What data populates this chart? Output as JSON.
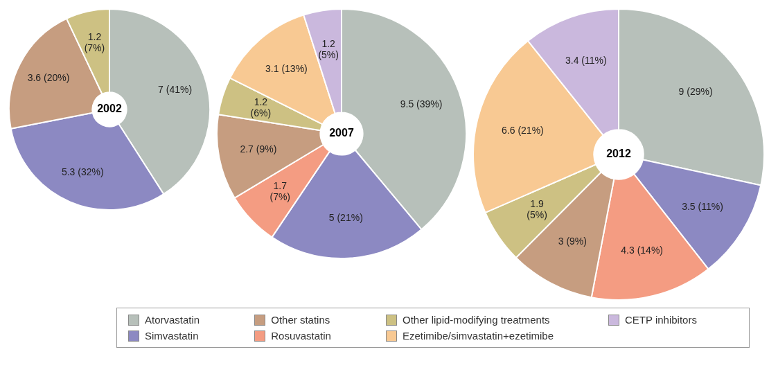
{
  "chart_data": [
    {
      "type": "donut",
      "title": "2002",
      "categories": [
        "Atorvastatin",
        "Simvastatin",
        "Rosuvastatin",
        "Other statins",
        "Other lipid-modifying treatments",
        "Ezetimibe/simvastatin+ezetimibe",
        "CETP inhibitors"
      ],
      "values": [
        7,
        5.3,
        null,
        3.6,
        1.2,
        null,
        null
      ],
      "value_labels": [
        "7 (41%)",
        "5.3 (32%)",
        null,
        "3.6 (20%)",
        "1.2 (7%)",
        null,
        null
      ],
      "colors": [
        "#b7c0ba",
        "#8c89c2",
        "#f49c82",
        "#c69d80",
        "#cdc183",
        "#f8c993",
        "#cab8dd"
      ],
      "legend": "bottom"
    },
    {
      "type": "donut",
      "title": "2007",
      "categories": [
        null,
        null,
        null,
        null,
        null,
        null,
        null
      ],
      "values": [
        9.5,
        5,
        1.7,
        2.7,
        1.2,
        3.1,
        1.2
      ],
      "value_labels": [
        "9.5 (39%)",
        "5 (21%)",
        "1.7 (7%)",
        "2.7 (9%)",
        "1.2 (6%)",
        "3.1 (13%)",
        "1.2 (5%)"
      ],
      "colors": [
        "#b7c0ba",
        "#8c89c2",
        "#f49c82",
        "#c69d80",
        "#cdc183",
        "#f8c993",
        "#cab8dd"
      ]
    },
    {
      "type": "donut",
      "title": "2012",
      "categories": [
        null,
        null,
        null,
        null,
        null,
        null,
        null
      ],
      "values": [
        9,
        3.5,
        4.3,
        3,
        1.9,
        6.6,
        3.4
      ],
      "value_labels": [
        "9 (29%)",
        "3.5 (11%)",
        "4.3 (14%)",
        "3 (9%)",
        "1.9 (5%)",
        "6.6 (21%)",
        "3.4 (11%)"
      ],
      "colors": [
        "#b7c0ba",
        "#8c89c2",
        "#f49c82",
        "#c69d80",
        "#cdc183",
        "#f8c993",
        "#cab8dd"
      ]
    }
  ]
}
